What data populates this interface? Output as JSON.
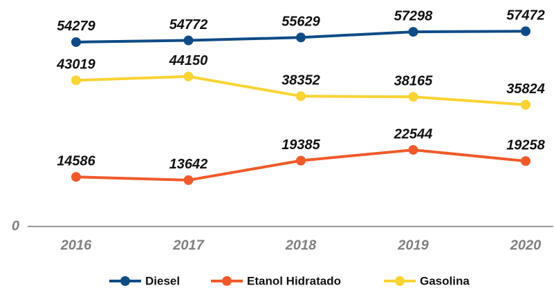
{
  "chart_data": {
    "type": "line",
    "categories": [
      "2016",
      "2017",
      "2018",
      "2019",
      "2020"
    ],
    "series": [
      {
        "name": "Diesel",
        "color": "#0f4c86",
        "values": [
          54279,
          54772,
          55629,
          57298,
          57472
        ]
      },
      {
        "name": "Etanol Hidratado",
        "color": "#f05a2b",
        "values": [
          14586,
          13642,
          19385,
          22544,
          19258
        ]
      },
      {
        "name": "Gasolina",
        "color": "#fad334",
        "values": [
          43019,
          44150,
          38352,
          38165,
          35824
        ]
      }
    ],
    "ylim": [
      0,
      62600
    ],
    "yticks": [
      0
    ],
    "grid": false,
    "legend": "bottom"
  }
}
